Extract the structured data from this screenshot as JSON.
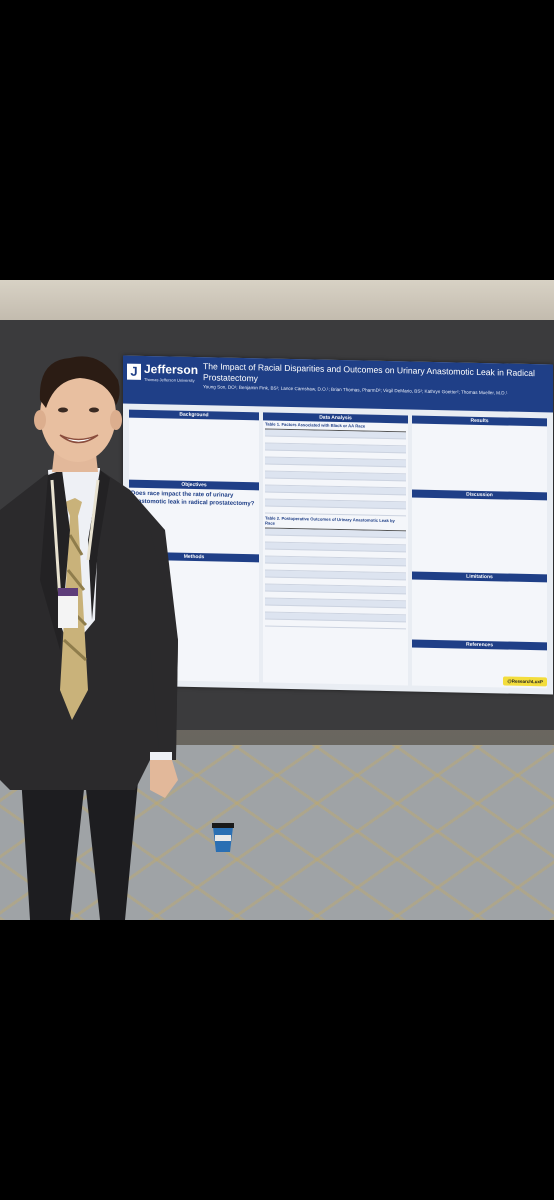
{
  "poster": {
    "logo_name": "Jefferson",
    "logo_sub": "Thomas Jefferson University",
    "title": "The Impact of Racial Disparities and Outcomes on Urinary Anastomotic Leak in Radical Prostatectomy",
    "authors": "Young Son, DO¹; Benjamin Fink, BS²; Lance Carnshaw, D.O.¹; Brian Thomas, PharmD²; Virgil DeMario, BS²; Kathryn Goetter²; Thomas Mueller, M.D.¹",
    "sections": {
      "background": "Background",
      "objectives": "Objectives",
      "methods": "Methods",
      "data_analysis": "Data Analysis",
      "results": "Results",
      "discussion": "Discussion",
      "limitations": "Limitations",
      "references": "References"
    },
    "objective_question": "Does race impact the rate of urinary anastomotic leak in radical prostatectomy?",
    "table1_title": "Table 1. Factors Associated with Black or AA Race",
    "table2_title": "Table 2. Postoperative Outcomes of Urinary Anastomotic Leak by Race",
    "badge": "@ResearchLuxP"
  },
  "colors": {
    "poster_blue": "#1f3f87",
    "badge_yellow": "#f3dd3c",
    "board_gray": "#3b3b3d"
  },
  "icons": [
    "jefferson-logo-icon",
    "coffee-cup-icon"
  ]
}
